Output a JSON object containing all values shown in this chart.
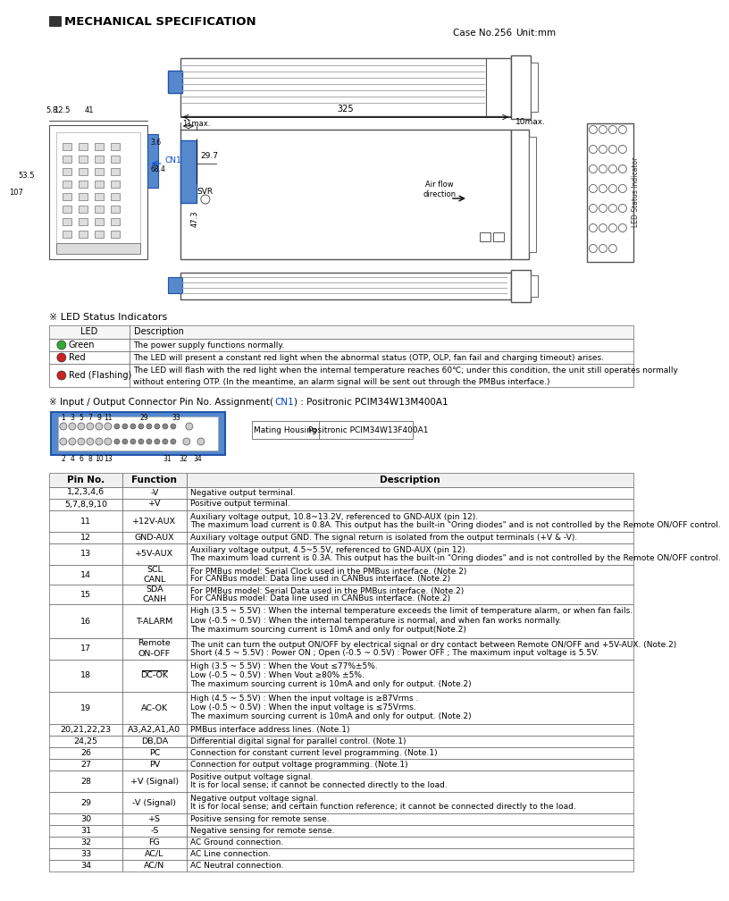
{
  "title": "MECHANICAL SPECIFICATION",
  "case_info_1": "Case No.256",
  "case_info_2": "Unit:mm",
  "bg_color": "#ffffff",
  "led_section_title": "※ LED Status Indicators",
  "led_table_rows": [
    [
      "Green",
      "#33aa33",
      "The power supply functions normally."
    ],
    [
      "Red",
      "#cc2222",
      "The LED will present a constant red light when the abnormal status (OTP, OLP, fan fail and charging timeout) arises."
    ],
    [
      "Red (Flashing)",
      "#cc2222",
      "The LED will flash with the red light when the internal temperature reaches 60℃; under this condition, the unit still operates normally\nwithout entering OTP. (In the meantime, an alarm signal will be sent out through the PMBus interface.)"
    ]
  ],
  "connector_title_1": "※ Input / Output Connector Pin No. Assignment(",
  "connector_title_cn1": "CN1",
  "connector_title_2": ") : Positronic PCIM34W13M400A1",
  "mating_label": "Mating Housing",
  "mating_value": "Positronic PCIM34W13F400A1",
  "pin_top_nums": [
    "1",
    "3",
    "5",
    "7",
    "9",
    "11",
    "29",
    "33"
  ],
  "pin_bot_nums": [
    "2",
    "4",
    "6",
    "8",
    "10",
    "13",
    "31",
    "32",
    "34"
  ],
  "pin_table_rows": [
    [
      "1,2,3,4,6",
      "-V",
      "Negative output terminal."
    ],
    [
      "5,7,8,9,10",
      "+V",
      "Positive output terminal."
    ],
    [
      "11",
      "+12V-AUX",
      "Auxiliary voltage output, 10.8~13.2V, referenced to GND-AUX (pin 12).\nThe maximum load current is 0.8A. This output has the built-in \"Oring diodes\" and is not controlled by the Remote ON/OFF control."
    ],
    [
      "12",
      "GND-AUX",
      "Auxiliary voltage output GND. The signal return is isolated from the output terminals (+V & -V)."
    ],
    [
      "13",
      "+5V-AUX",
      "Auxiliary voltage output, 4.5~5.5V, referenced to GND-AUX (pin 12).\nThe maximum load current is 0.3A. This output has the built-in \"Oring diodes\" and is not controlled by the Remote ON/OFF control."
    ],
    [
      "14",
      "SCL\nCANL",
      "For PMBus model: Serial Clock used in the PMBus interface. (Note.2)\nFor CANBus model: Data line used in CANBus interface. (Note.2)"
    ],
    [
      "15",
      "SDA\nCANH",
      "For PMBus model: Serial Data used in the PMBus interface. (Note.2)\nFor CANBus model: Data line used in CANBus interface. (Note.2)"
    ],
    [
      "16",
      "T-ALARM",
      "High (3.5 ~ 5.5V) : When the internal temperature exceeds the limit of temperature alarm, or when fan fails.\nLow (-0.5 ~ 0.5V) : When the internal temperature is normal, and when fan works normally.\nThe maximum sourcing current is 10mA and only for output(Note.2)"
    ],
    [
      "17",
      "Remote\nON-OFF",
      "The unit can turn the output ON/OFF by electrical signal or dry contact between Remote ON/OFF and +5V-AUX. (Note.2)\nShort (4.5 ~ 5.5V) : Power ON ; Open (-0.5 ~ 0.5V) : Power OFF ; The maximum input voltage is 5.5V."
    ],
    [
      "18",
      "DC-OK",
      "High (3.5 ~ 5.5V) : When the Vout ≤77%±5%.\nLow (-0.5 ~ 0.5V) : When Vout ≥80% ±5%.\nThe maximum sourcing current is 10mA and only for output. (Note.2)"
    ],
    [
      "19",
      "AC-OK",
      "High (4.5 ~ 5.5V) : When the input voltage is ≥87Vrms .\nLow (-0.5 ~ 0.5V) : When the input voltage is ≤75Vrms.\nThe maximum sourcing current is 10mA and only for output. (Note.2)"
    ],
    [
      "20,21,22,23",
      "A3,A2,A1,A0",
      "PMBus interface address lines. (Note.1)"
    ],
    [
      "24,25",
      "DB,DA",
      "Differential digital signal for parallel control. (Note.1)"
    ],
    [
      "26",
      "PC",
      "Connection for constant current level programming. (Note.1)"
    ],
    [
      "27",
      "PV",
      "Connection for output voltage programming. (Note.1)"
    ],
    [
      "28",
      "+V (Signal)",
      "Positive output voltage signal.\nIt is for local sense; it cannot be connected directly to the load."
    ],
    [
      "29",
      "-V (Signal)",
      "Negative output voltage signal.\nIt is for local sense; and certain function reference; it cannot be connected directly to the load."
    ],
    [
      "30",
      "+S",
      "Positive sensing for remote sense."
    ],
    [
      "31",
      "-S",
      "Negative sensing for remote sense."
    ],
    [
      "32",
      "FG",
      "AC Ground connection."
    ],
    [
      "33",
      "AC/L",
      "AC Line connection."
    ],
    [
      "34",
      "AC/N",
      "AC Neutral connection."
    ]
  ],
  "pin_row_heights": [
    13,
    13,
    24,
    13,
    24,
    22,
    22,
    38,
    24,
    36,
    36,
    13,
    13,
    13,
    13,
    24,
    24,
    13,
    13,
    13,
    13,
    13
  ]
}
